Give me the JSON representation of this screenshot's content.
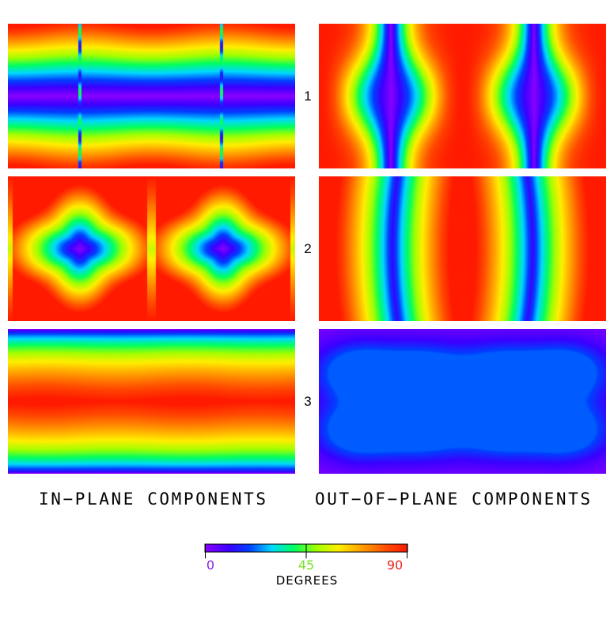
{
  "figure": {
    "rows": [
      {
        "label": "1"
      },
      {
        "label": "2"
      },
      {
        "label": "3"
      }
    ],
    "columns": [
      {
        "caption": "IN−PLANE COMPONENTS"
      },
      {
        "caption": "OUT−OF−PLANE COMPONENTS"
      }
    ],
    "colorbar": {
      "title": "DEGREES",
      "min": 0,
      "max": 90,
      "ticks": [
        {
          "label": "0",
          "value": 0,
          "color": "#8a1fe0"
        },
        {
          "label": "45",
          "value": 45,
          "color": "#7adf2a"
        },
        {
          "label": "90",
          "value": 90,
          "color": "#e8231a"
        }
      ],
      "colormap": "rainbow (violet → blue → cyan → green → yellow → orange → red)"
    }
  }
}
